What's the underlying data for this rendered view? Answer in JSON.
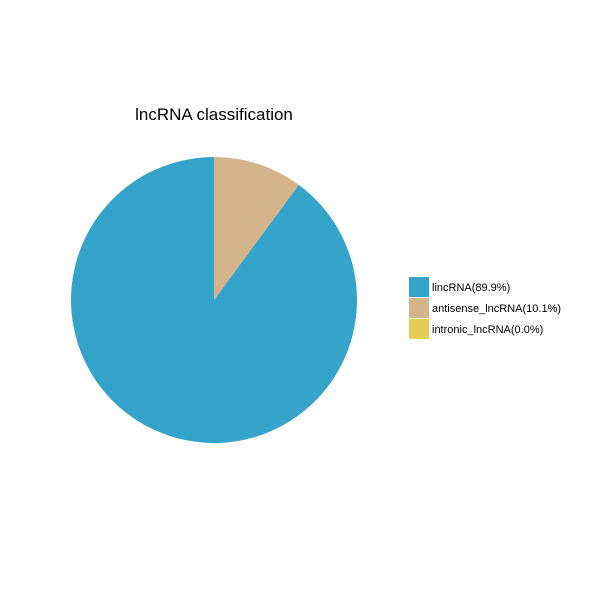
{
  "chart_data": {
    "type": "pie",
    "title": "lncRNA classification",
    "series": [
      {
        "name": "lncRNA classification",
        "labels": [
          "lincRNA",
          "antisense_lncRNA",
          "intronic_lncRNA"
        ],
        "values": [
          89.9,
          10.1,
          0.0
        ],
        "unit": "%"
      }
    ],
    "legend": {
      "position": "right",
      "entries": [
        {
          "label": "lincRNA(89.9%)",
          "color": "#35a3ca"
        },
        {
          "label": "antisense_lncRNA(10.1%)",
          "color": "#d3b48b"
        },
        {
          "label": "intronic_lncRNA(0.0%)",
          "color": "#e3cd55"
        }
      ]
    },
    "colors": [
      "#35a3ca",
      "#d3b48b",
      "#e3cd55"
    ],
    "start_angle": "12 o'clock",
    "direction": "counter-clockwise",
    "grid": false
  }
}
